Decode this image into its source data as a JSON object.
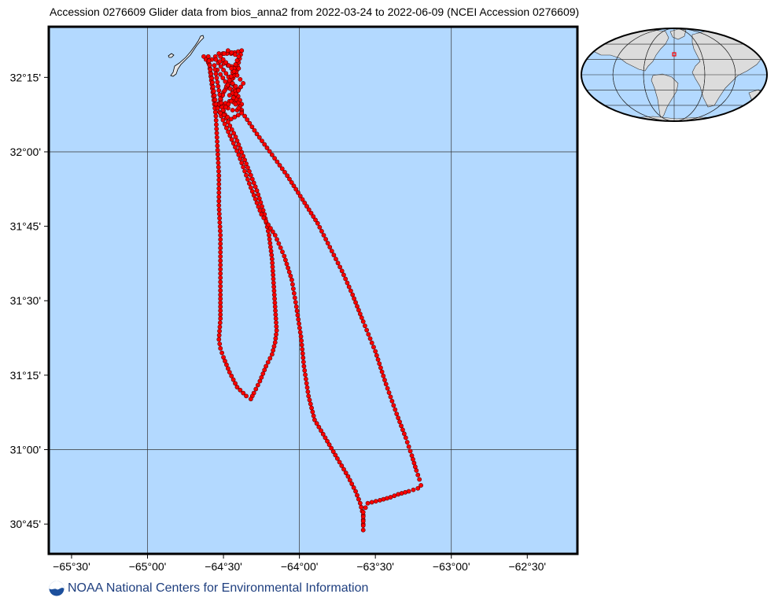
{
  "title": "Accession 0276609 Glider data from bios_anna2 from 2022-03-24 to 2022-06-09 (NCEI Accession 0276609)",
  "footer": {
    "text": "NOAA National Centers for Environmental Information",
    "logo_icon": "noaa-logo-icon"
  },
  "map": {
    "lon_range": [
      -65.65,
      -62.17
    ],
    "lat_range": [
      30.65,
      32.42
    ],
    "x_ticks": [
      {
        "lon": -65.5,
        "label": "−65°30'"
      },
      {
        "lon": -65.0,
        "label": "−65°00'"
      },
      {
        "lon": -64.5,
        "label": "−64°30'"
      },
      {
        "lon": -64.0,
        "label": "−64°00'"
      },
      {
        "lon": -63.5,
        "label": "−63°30'"
      },
      {
        "lon": -63.0,
        "label": "−63°00'"
      },
      {
        "lon": -62.5,
        "label": "−62°30'"
      }
    ],
    "y_ticks": [
      {
        "lat": 32.25,
        "label": "32°15'"
      },
      {
        "lat": 32.0,
        "label": "32°00'"
      },
      {
        "lat": 31.75,
        "label": "31°45'"
      },
      {
        "lat": 31.5,
        "label": "31°30'"
      },
      {
        "lat": 31.25,
        "label": "31°15'"
      },
      {
        "lat": 31.0,
        "label": "31°00'"
      },
      {
        "lat": 30.75,
        "label": "30°45'"
      }
    ],
    "grid_lons": [
      -65.0,
      -64.0,
      -63.0
    ],
    "grid_lats": [
      32.0,
      31.0
    ],
    "colors": {
      "ocean": "#b3d9ff",
      "land": "#e6e6e6",
      "track": "#ff0000",
      "track_outline": "#5a0000"
    },
    "land_island": "Bermuda",
    "track": [
      [
        -64.63,
        32.32
      ],
      [
        -64.6,
        32.3
      ],
      [
        -64.53,
        32.33
      ],
      [
        -64.45,
        32.33
      ],
      [
        -64.38,
        32.34
      ],
      [
        -64.42,
        32.26
      ],
      [
        -64.5,
        32.2
      ],
      [
        -64.54,
        32.15
      ],
      [
        -64.46,
        32.17
      ],
      [
        -64.38,
        32.16
      ],
      [
        -64.45,
        32.24
      ],
      [
        -64.55,
        32.31
      ],
      [
        -64.47,
        32.29
      ],
      [
        -64.4,
        32.28
      ],
      [
        -64.48,
        32.22
      ],
      [
        -64.53,
        32.16
      ],
      [
        -64.44,
        32.14
      ],
      [
        -64.38,
        32.14
      ],
      [
        -64.44,
        32.2
      ],
      [
        -64.52,
        32.26
      ],
      [
        -64.56,
        32.29
      ],
      [
        -64.51,
        32.15
      ],
      [
        -64.47,
        32.1
      ],
      [
        -64.42,
        32.05
      ],
      [
        -64.35,
        31.96
      ],
      [
        -64.28,
        31.87
      ],
      [
        -64.23,
        31.79
      ],
      [
        -64.2,
        31.72
      ],
      [
        -64.18,
        31.64
      ],
      [
        -64.17,
        31.56
      ],
      [
        -64.16,
        31.48
      ],
      [
        -64.15,
        31.4
      ],
      [
        -64.16,
        31.36
      ],
      [
        -64.18,
        31.32
      ],
      [
        -64.22,
        31.28
      ],
      [
        -64.26,
        31.23
      ],
      [
        -64.3,
        31.19
      ],
      [
        -64.32,
        31.17
      ],
      [
        -64.35,
        31.18
      ],
      [
        -64.41,
        31.21
      ],
      [
        -64.46,
        31.26
      ],
      [
        -64.5,
        31.31
      ],
      [
        -64.52,
        31.34
      ],
      [
        -64.53,
        31.37
      ],
      [
        -64.52,
        31.44
      ],
      [
        -64.52,
        31.52
      ],
      [
        -64.52,
        31.62
      ],
      [
        -64.52,
        31.72
      ],
      [
        -64.53,
        31.82
      ],
      [
        -64.53,
        31.92
      ],
      [
        -64.54,
        32.02
      ],
      [
        -64.55,
        32.12
      ],
      [
        -64.57,
        32.2
      ],
      [
        -64.59,
        32.28
      ],
      [
        -64.6,
        32.32
      ],
      [
        -64.55,
        32.16
      ],
      [
        -64.48,
        32.08
      ],
      [
        -64.4,
        31.99
      ],
      [
        -64.32,
        31.88
      ],
      [
        -64.25,
        31.79
      ],
      [
        -64.16,
        31.72
      ],
      [
        -64.1,
        31.65
      ],
      [
        -64.05,
        31.57
      ],
      [
        -64.02,
        31.48
      ],
      [
        -63.99,
        31.38
      ],
      [
        -63.97,
        31.28
      ],
      [
        -63.94,
        31.18
      ],
      [
        -63.9,
        31.1
      ],
      [
        -63.83,
        31.04
      ],
      [
        -63.75,
        30.97
      ],
      [
        -63.68,
        30.91
      ],
      [
        -63.63,
        30.86
      ],
      [
        -63.6,
        30.82
      ],
      [
        -63.58,
        30.78
      ],
      [
        -63.58,
        30.75
      ],
      [
        -63.58,
        30.73
      ],
      [
        -63.58,
        30.79
      ],
      [
        -63.55,
        30.82
      ],
      [
        -63.47,
        30.83
      ],
      [
        -63.4,
        30.84
      ],
      [
        -63.35,
        30.85
      ],
      [
        -63.28,
        30.86
      ],
      [
        -63.22,
        30.87
      ],
      [
        -63.2,
        30.88
      ],
      [
        -63.21,
        30.9
      ],
      [
        -63.23,
        30.93
      ],
      [
        -63.26,
        30.98
      ],
      [
        -63.3,
        31.04
      ],
      [
        -63.36,
        31.12
      ],
      [
        -63.43,
        31.22
      ],
      [
        -63.5,
        31.33
      ],
      [
        -63.58,
        31.43
      ],
      [
        -63.65,
        31.52
      ],
      [
        -63.72,
        31.6
      ],
      [
        -63.8,
        31.68
      ],
      [
        -63.88,
        31.76
      ],
      [
        -63.98,
        31.84
      ],
      [
        -64.08,
        31.92
      ],
      [
        -64.18,
        31.99
      ],
      [
        -64.28,
        32.06
      ],
      [
        -64.36,
        32.12
      ],
      [
        -64.42,
        32.16
      ],
      [
        -64.46,
        32.19
      ],
      [
        -64.4,
        32.21
      ],
      [
        -64.46,
        32.24
      ],
      [
        -64.4,
        32.32
      ],
      [
        -64.47,
        32.34
      ],
      [
        -64.52,
        32.32
      ],
      [
        -64.43,
        32.27
      ],
      [
        -64.37,
        32.23
      ],
      [
        -64.45,
        32.17
      ],
      [
        -64.52,
        32.13
      ],
      [
        -64.45,
        32.11
      ],
      [
        -64.38,
        32.13
      ]
    ]
  },
  "inset": {
    "colors": {
      "ocean": "#b3d9ff",
      "land": "#dcdcdc",
      "marker": "#ff0000"
    },
    "marker_label": "study-area-marker"
  }
}
